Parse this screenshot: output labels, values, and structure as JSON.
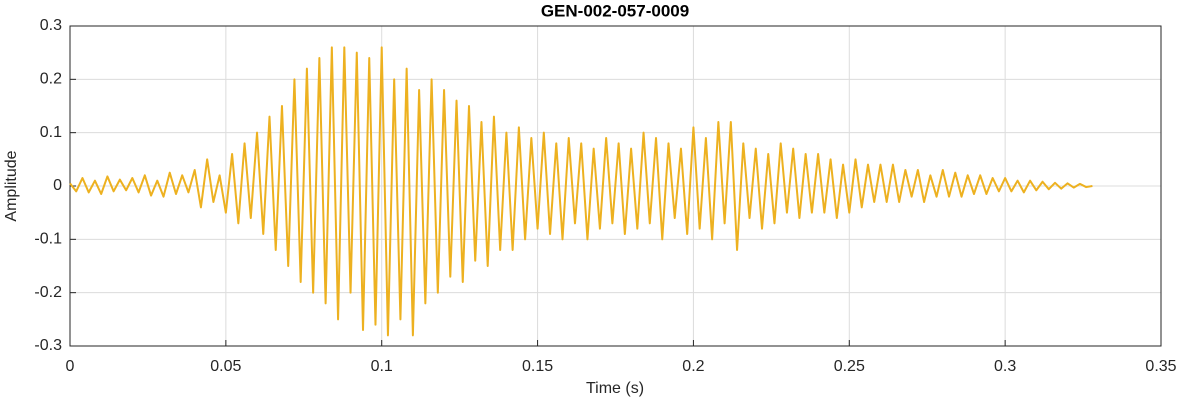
{
  "chart_data": {
    "type": "line",
    "title": "GEN-002-057-0009",
    "xlabel": "Time (s)",
    "ylabel": "Amplitude",
    "xlim": [
      0,
      0.35
    ],
    "xticks": [
      0,
      0.05,
      0.1,
      0.15,
      0.2,
      0.25,
      0.3,
      0.35
    ],
    "ylim": [
      -0.3,
      0.3
    ],
    "yticks": [
      -0.3,
      -0.2,
      -0.1,
      0,
      0.1,
      0.2,
      0.3
    ],
    "grid": true,
    "x": [
      0,
      0.002,
      0.004,
      0.006,
      0.008,
      0.01,
      0.012,
      0.014,
      0.016,
      0.018,
      0.02,
      0.022,
      0.024,
      0.026,
      0.028,
      0.03,
      0.032,
      0.034,
      0.036,
      0.038,
      0.04,
      0.042,
      0.044,
      0.046,
      0.048,
      0.05,
      0.052,
      0.054,
      0.056,
      0.058,
      0.06,
      0.062,
      0.064,
      0.066,
      0.068,
      0.07,
      0.072,
      0.074,
      0.076,
      0.078,
      0.08,
      0.082,
      0.084,
      0.086,
      0.088,
      0.09,
      0.092,
      0.094,
      0.096,
      0.098,
      0.1,
      0.102,
      0.104,
      0.106,
      0.108,
      0.11,
      0.112,
      0.114,
      0.116,
      0.118,
      0.12,
      0.122,
      0.124,
      0.126,
      0.128,
      0.13,
      0.132,
      0.134,
      0.136,
      0.138,
      0.14,
      0.142,
      0.144,
      0.146,
      0.148,
      0.15,
      0.152,
      0.154,
      0.156,
      0.158,
      0.16,
      0.162,
      0.164,
      0.166,
      0.168,
      0.17,
      0.172,
      0.174,
      0.176,
      0.178,
      0.18,
      0.182,
      0.184,
      0.186,
      0.188,
      0.19,
      0.192,
      0.194,
      0.196,
      0.198,
      0.2,
      0.202,
      0.204,
      0.206,
      0.208,
      0.21,
      0.212,
      0.214,
      0.216,
      0.218,
      0.22,
      0.222,
      0.224,
      0.226,
      0.228,
      0.23,
      0.232,
      0.234,
      0.236,
      0.238,
      0.24,
      0.242,
      0.244,
      0.246,
      0.248,
      0.25,
      0.252,
      0.254,
      0.256,
      0.258,
      0.26,
      0.262,
      0.264,
      0.266,
      0.268,
      0.27,
      0.272,
      0.274,
      0.276,
      0.278,
      0.28,
      0.282,
      0.284,
      0.286,
      0.288,
      0.29,
      0.292,
      0.294,
      0.296,
      0.298,
      0.3,
      0.302,
      0.304,
      0.306,
      0.308,
      0.31,
      0.312,
      0.314,
      0.316,
      0.318,
      0.32,
      0.322,
      0.324,
      0.326,
      0.328
    ],
    "series": [
      {
        "color": "#EDB120",
        "values": [
          0.005,
          -0.01,
          0.015,
          -0.012,
          0.01,
          -0.015,
          0.018,
          -0.01,
          0.012,
          -0.008,
          0.015,
          -0.012,
          0.02,
          -0.018,
          0.01,
          -0.02,
          0.025,
          -0.015,
          0.02,
          -0.012,
          0.03,
          -0.04,
          0.05,
          -0.03,
          0.02,
          -0.05,
          0.06,
          -0.07,
          0.08,
          -0.06,
          0.1,
          -0.09,
          0.13,
          -0.12,
          0.15,
          -0.15,
          0.2,
          -0.18,
          0.22,
          -0.2,
          0.24,
          -0.22,
          0.26,
          -0.25,
          0.26,
          -0.2,
          0.25,
          -0.27,
          0.24,
          -0.26,
          0.26,
          -0.28,
          0.2,
          -0.25,
          0.22,
          -0.28,
          0.18,
          -0.22,
          0.2,
          -0.2,
          0.18,
          -0.17,
          0.16,
          -0.18,
          0.15,
          -0.14,
          0.12,
          -0.15,
          0.13,
          -0.12,
          0.1,
          -0.12,
          0.11,
          -0.1,
          0.09,
          -0.08,
          0.1,
          -0.09,
          0.08,
          -0.1,
          0.09,
          -0.07,
          0.08,
          -0.1,
          0.07,
          -0.08,
          0.09,
          -0.07,
          0.08,
          -0.09,
          0.07,
          -0.08,
          0.1,
          -0.07,
          0.09,
          -0.1,
          0.08,
          -0.06,
          0.07,
          -0.09,
          0.11,
          -0.08,
          0.09,
          -0.1,
          0.12,
          -0.07,
          0.12,
          -0.12,
          0.08,
          -0.06,
          0.07,
          -0.08,
          0.06,
          -0.07,
          0.08,
          -0.05,
          0.07,
          -0.06,
          0.06,
          -0.05,
          0.06,
          -0.05,
          0.05,
          -0.06,
          0.04,
          -0.05,
          0.05,
          -0.04,
          0.04,
          -0.03,
          0.04,
          -0.03,
          0.04,
          -0.03,
          0.03,
          -0.02,
          0.03,
          -0.03,
          0.02,
          -0.02,
          0.03,
          -0.02,
          0.025,
          -0.02,
          0.02,
          -0.015,
          0.02,
          -0.015,
          0.015,
          -0.01,
          0.015,
          -0.01,
          0.01,
          -0.012,
          0.01,
          -0.008,
          0.008,
          -0.006,
          0.006,
          -0.005,
          0.005,
          -0.003,
          0.004,
          -0.002,
          0
        ]
      }
    ]
  }
}
